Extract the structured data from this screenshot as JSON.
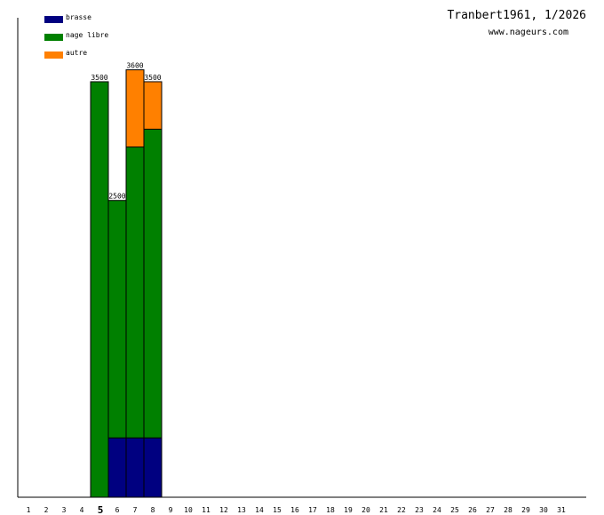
{
  "header": {
    "title": "Tranbert1961, 1/2026",
    "site": "www.nageurs.com"
  },
  "colors": {
    "brasse": "#000080",
    "nage_libre": "#008000",
    "autre": "#ff8000",
    "axis": "#000000"
  },
  "chart_data": {
    "type": "bar",
    "stacked": true,
    "title": "Tranbert1961, 1/2026",
    "xlabel": "",
    "ylabel": "",
    "categories": [
      "1",
      "2",
      "3",
      "4",
      "5",
      "6",
      "7",
      "8",
      "9",
      "10",
      "11",
      "12",
      "13",
      "14",
      "15",
      "16",
      "17",
      "18",
      "19",
      "20",
      "21",
      "22",
      "23",
      "24",
      "25",
      "26",
      "27",
      "28",
      "29",
      "30",
      "31"
    ],
    "highlight_category": "5",
    "ylim": [
      0,
      3600
    ],
    "grid": false,
    "legend_position": "top-left",
    "series": [
      {
        "name": "brasse",
        "color": "#000080",
        "values": [
          0,
          0,
          0,
          0,
          0,
          500,
          500,
          500,
          0,
          0,
          0,
          0,
          0,
          0,
          0,
          0,
          0,
          0,
          0,
          0,
          0,
          0,
          0,
          0,
          0,
          0,
          0,
          0,
          0,
          0,
          0
        ]
      },
      {
        "name": "nage libre",
        "color": "#008000",
        "values": [
          0,
          0,
          0,
          0,
          3500,
          2000,
          2450,
          2600,
          0,
          0,
          0,
          0,
          0,
          0,
          0,
          0,
          0,
          0,
          0,
          0,
          0,
          0,
          0,
          0,
          0,
          0,
          0,
          0,
          0,
          0,
          0
        ]
      },
      {
        "name": "autre",
        "color": "#ff8000",
        "values": [
          0,
          0,
          0,
          0,
          0,
          0,
          650,
          400,
          0,
          0,
          0,
          0,
          0,
          0,
          0,
          0,
          0,
          0,
          0,
          0,
          0,
          0,
          0,
          0,
          0,
          0,
          0,
          0,
          0,
          0,
          0
        ]
      }
    ],
    "totals": [
      0,
      0,
      0,
      0,
      3500,
      2500,
      3600,
      3500,
      0,
      0,
      0,
      0,
      0,
      0,
      0,
      0,
      0,
      0,
      0,
      0,
      0,
      0,
      0,
      0,
      0,
      0,
      0,
      0,
      0,
      0,
      0
    ]
  }
}
